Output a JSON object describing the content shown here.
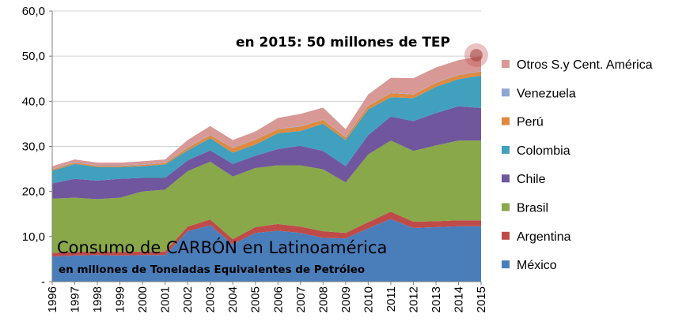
{
  "chart_data": {
    "type": "area",
    "stacked": true,
    "title": "Consumo de CARBÓN en Latinoamérica",
    "subtitle": "en millones de Toneladas Equivalentes de Petróleo",
    "annotation": "en 2015: 50 millones de TEP",
    "xlabel": "",
    "ylabel": "",
    "ylim": [
      0,
      60
    ],
    "yticks": [
      "-",
      "10,0",
      "20,0",
      "30,0",
      "40,0",
      "50,0",
      "60,0"
    ],
    "grid": true,
    "legend_position": "right",
    "x": [
      "1996",
      "1997",
      "1998",
      "1999",
      "2000",
      "2001",
      "2002",
      "2003",
      "2004",
      "2005",
      "2006",
      "2007",
      "2008",
      "2009",
      "2010",
      "2011",
      "2012",
      "2013",
      "2014",
      "2015"
    ],
    "series": [
      {
        "name": "México",
        "color": "#4a7ebb",
        "values": [
          5.6,
          5.8,
          5.9,
          5.8,
          5.9,
          5.9,
          11.2,
          12.5,
          8.3,
          10.8,
          11.3,
          10.8,
          9.7,
          9.6,
          11.8,
          13.9,
          11.9,
          12.1,
          12.3,
          12.3
        ]
      },
      {
        "name": "Argentina",
        "color": "#be4b48",
        "values": [
          0.8,
          0.8,
          0.8,
          0.8,
          0.8,
          0.8,
          1.0,
          1.3,
          1.1,
          1.3,
          1.5,
          1.4,
          1.5,
          1.2,
          1.4,
          1.6,
          1.4,
          1.3,
          1.3,
          1.3
        ]
      },
      {
        "name": "Brasil",
        "color": "#88a84a",
        "values": [
          12.0,
          12.0,
          11.6,
          12.0,
          13.3,
          13.7,
          12.3,
          12.8,
          13.9,
          13.1,
          13.0,
          13.6,
          13.7,
          11.2,
          15.0,
          15.8,
          15.7,
          16.8,
          17.7,
          17.7
        ]
      },
      {
        "name": "Chile",
        "color": "#70569c",
        "values": [
          3.4,
          4.2,
          4.1,
          4.2,
          3.0,
          2.6,
          2.4,
          2.5,
          2.8,
          2.7,
          3.6,
          4.3,
          4.1,
          3.6,
          4.3,
          5.3,
          6.6,
          7.2,
          7.6,
          7.2
        ]
      },
      {
        "name": "Colombia",
        "color": "#41a0bd",
        "values": [
          2.8,
          3.3,
          3.0,
          2.6,
          2.6,
          3.0,
          2.2,
          2.7,
          2.5,
          2.5,
          3.5,
          3.3,
          6.0,
          5.8,
          5.7,
          4.3,
          5.1,
          5.8,
          6.0,
          7.2
        ]
      },
      {
        "name": "Perú",
        "color": "#e08a40",
        "values": [
          0.3,
          0.3,
          0.3,
          0.3,
          0.3,
          0.3,
          0.6,
          0.7,
          1.0,
          1.1,
          0.9,
          1.0,
          0.9,
          0.6,
          0.8,
          0.9,
          0.8,
          0.9,
          0.9,
          0.9
        ]
      },
      {
        "name": "Venezuela",
        "color": "#8ea7d2",
        "values": [
          0.1,
          0.1,
          0.1,
          0.1,
          0.1,
          0.1,
          0.1,
          0.1,
          0.1,
          0.1,
          0.1,
          0.1,
          0.1,
          0.1,
          0.1,
          0.1,
          0.1,
          0.1,
          0.1,
          0.1
        ]
      },
      {
        "name": "Otros S.y Cent. América",
        "color": "#d79896",
        "values": [
          0.6,
          0.6,
          0.6,
          0.6,
          0.7,
          0.7,
          1.6,
          1.9,
          1.7,
          1.7,
          2.4,
          2.7,
          2.6,
          1.7,
          2.4,
          3.3,
          3.5,
          3.3,
          3.2,
          3.3
        ]
      }
    ]
  }
}
